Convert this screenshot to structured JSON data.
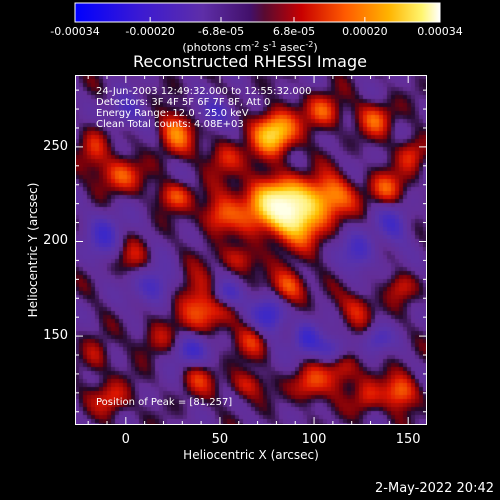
{
  "colorbar": {
    "ticks": [
      "-0.00034",
      "-0.00020",
      "-6.8e-05",
      "6.8e-05",
      "0.00020",
      "0.00034"
    ],
    "tick_values": [
      -0.00034,
      -0.0002,
      -6.8e-05,
      6.8e-05,
      0.0002,
      0.00034
    ],
    "range": [
      -0.00034,
      0.00034
    ],
    "unit_text": "(photons cm",
    "unit_exp1": "-2",
    "unit_mid": " s",
    "unit_exp2": "-1",
    "unit_mid2": " asec",
    "unit_exp3": "-2",
    "unit_close": ")"
  },
  "chart_data": {
    "type": "heatmap",
    "title": "Reconstructed RHESSI Image",
    "xlabel": "Heliocentric X (arcsec)",
    "ylabel": "Heliocentric Y (arcsec)",
    "xlim": [
      -27,
      160
    ],
    "ylim": [
      103,
      288
    ],
    "x_ticks": [
      0,
      50,
      100,
      150
    ],
    "y_ticks": [
      150,
      200,
      250
    ],
    "colormap": "Red Temperature",
    "peak": [
      81,
      257
    ],
    "annotations": [
      "24-Jun-2003 12:49:32.000 to 12:55:32.000",
      "Detectors: 3F 4F 5F 6F 7F 8F, Att 0",
      "Energy Range: 12.0 - 25.0 keV",
      "Clean     Total counts: 4.08E+03",
      "Position of Peak = [81,257]"
    ]
  },
  "footer": {
    "date": "2-May-2022 20:42"
  }
}
